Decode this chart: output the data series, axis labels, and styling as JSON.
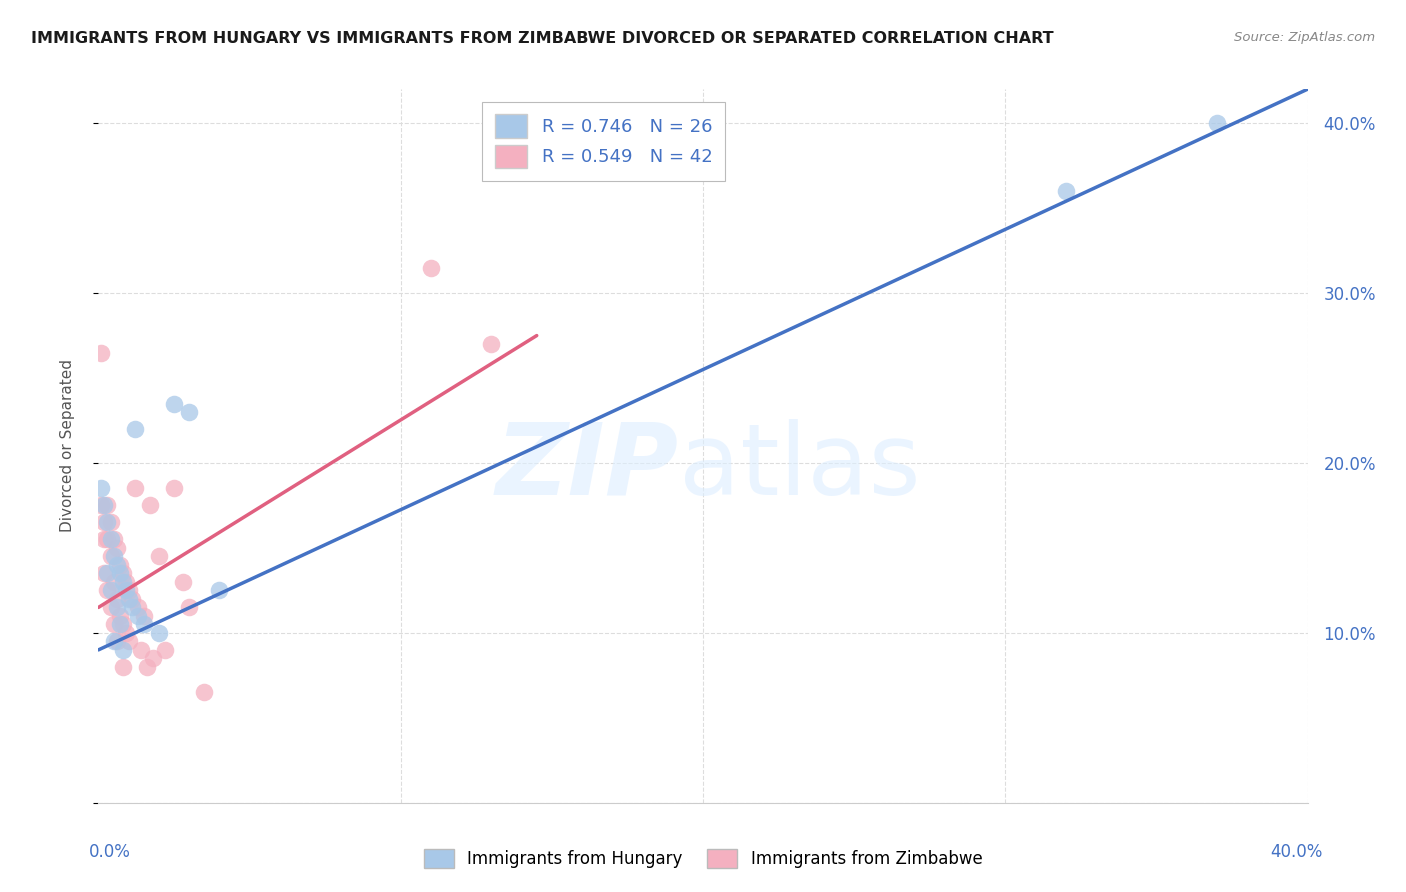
{
  "title": "IMMIGRANTS FROM HUNGARY VS IMMIGRANTS FROM ZIMBABWE DIVORCED OR SEPARATED CORRELATION CHART",
  "source": "Source: ZipAtlas.com",
  "ylabel": "Divorced or Separated",
  "xlim": [
    0.0,
    0.4
  ],
  "ylim": [
    0.0,
    0.42
  ],
  "ytick_values": [
    0.0,
    0.1,
    0.2,
    0.3,
    0.4
  ],
  "xtick_values": [
    0.0,
    0.1,
    0.2,
    0.3,
    0.4
  ],
  "hungary_color": "#a8c8e8",
  "hungary_line_color": "#4472c4",
  "zimbabwe_color": "#f4b0c0",
  "zimbabwe_line_color": "#e06080",
  "hungary_scatter_x": [
    0.001,
    0.002,
    0.003,
    0.003,
    0.004,
    0.004,
    0.005,
    0.005,
    0.006,
    0.006,
    0.007,
    0.007,
    0.008,
    0.008,
    0.009,
    0.01,
    0.011,
    0.012,
    0.013,
    0.015,
    0.02,
    0.025,
    0.03,
    0.04,
    0.32,
    0.37
  ],
  "hungary_scatter_y": [
    0.185,
    0.175,
    0.165,
    0.135,
    0.155,
    0.125,
    0.145,
    0.095,
    0.14,
    0.115,
    0.135,
    0.105,
    0.13,
    0.09,
    0.125,
    0.12,
    0.115,
    0.22,
    0.11,
    0.105,
    0.1,
    0.235,
    0.23,
    0.125,
    0.36,
    0.4
  ],
  "zimbabwe_scatter_x": [
    0.001,
    0.001,
    0.002,
    0.002,
    0.002,
    0.003,
    0.003,
    0.003,
    0.004,
    0.004,
    0.004,
    0.005,
    0.005,
    0.005,
    0.006,
    0.006,
    0.006,
    0.007,
    0.007,
    0.008,
    0.008,
    0.008,
    0.009,
    0.009,
    0.01,
    0.01,
    0.011,
    0.012,
    0.013,
    0.014,
    0.015,
    0.016,
    0.017,
    0.018,
    0.02,
    0.022,
    0.025,
    0.028,
    0.03,
    0.035,
    0.11,
    0.13
  ],
  "zimbabwe_scatter_y": [
    0.265,
    0.175,
    0.165,
    0.155,
    0.135,
    0.175,
    0.155,
    0.125,
    0.165,
    0.145,
    0.115,
    0.155,
    0.13,
    0.105,
    0.15,
    0.12,
    0.095,
    0.14,
    0.11,
    0.135,
    0.105,
    0.08,
    0.13,
    0.1,
    0.125,
    0.095,
    0.12,
    0.185,
    0.115,
    0.09,
    0.11,
    0.08,
    0.175,
    0.085,
    0.145,
    0.09,
    0.185,
    0.13,
    0.115,
    0.065,
    0.315,
    0.27
  ],
  "hungary_line_x": [
    0.0,
    0.4
  ],
  "hungary_line_y": [
    0.09,
    0.42
  ],
  "zimbabwe_line_x": [
    0.0,
    0.145
  ],
  "zimbabwe_line_y": [
    0.115,
    0.275
  ],
  "background_color": "#ffffff",
  "grid_color": "#dddddd"
}
